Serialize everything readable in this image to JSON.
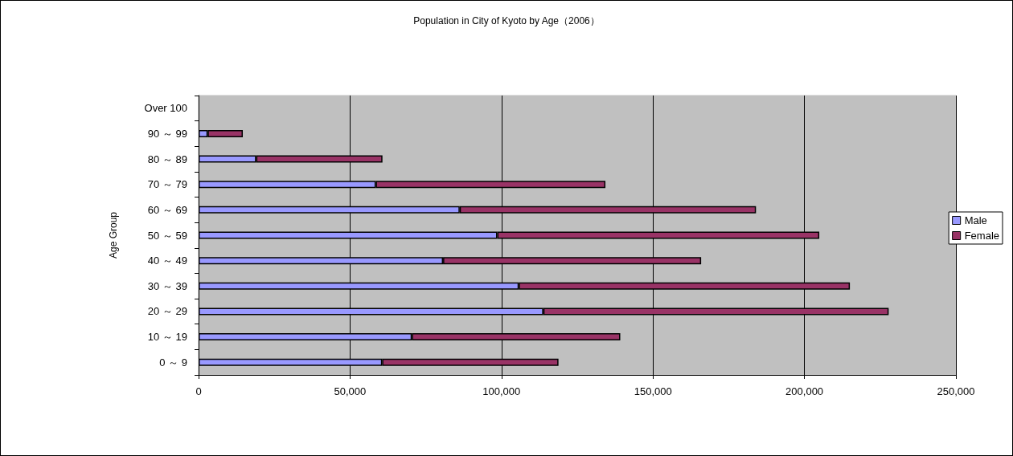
{
  "chart_data": {
    "type": "bar",
    "orientation": "horizontal",
    "stacked": true,
    "title": "Population in City of Kyoto by Age（2006）",
    "ylabel": "Age Group",
    "categories": [
      "Over 100",
      "90 ～ 99",
      "80 ～ 89",
      "70 ～ 79",
      "60 ～ 69",
      "50 ～ 59",
      "40 ～ 49",
      "30 ～ 39",
      "20 ～ 29",
      "10 ～ 19",
      "0 ～ 9"
    ],
    "series": [
      {
        "name": "Male",
        "color": "#9999ff",
        "values": [
          null,
          3000,
          19000,
          58500,
          86200,
          98600,
          80700,
          105700,
          113800,
          70400,
          60600
        ]
      },
      {
        "name": "Female",
        "color": "#993366",
        "values": [
          null,
          11600,
          41700,
          75800,
          97800,
          106300,
          85200,
          109300,
          114000,
          68800,
          58200
        ]
      }
    ],
    "xlim": [
      0,
      250000
    ],
    "xticks": [
      0,
      {
        "value": 50000,
        "label": "50,000"
      },
      {
        "value": 100000,
        "label": "100,000"
      },
      {
        "value": 150000,
        "label": "150,000"
      },
      {
        "value": 200000,
        "label": "200,000"
      },
      {
        "value": 250000,
        "label": "250,000"
      }
    ],
    "grid": "x",
    "legend": "right"
  }
}
